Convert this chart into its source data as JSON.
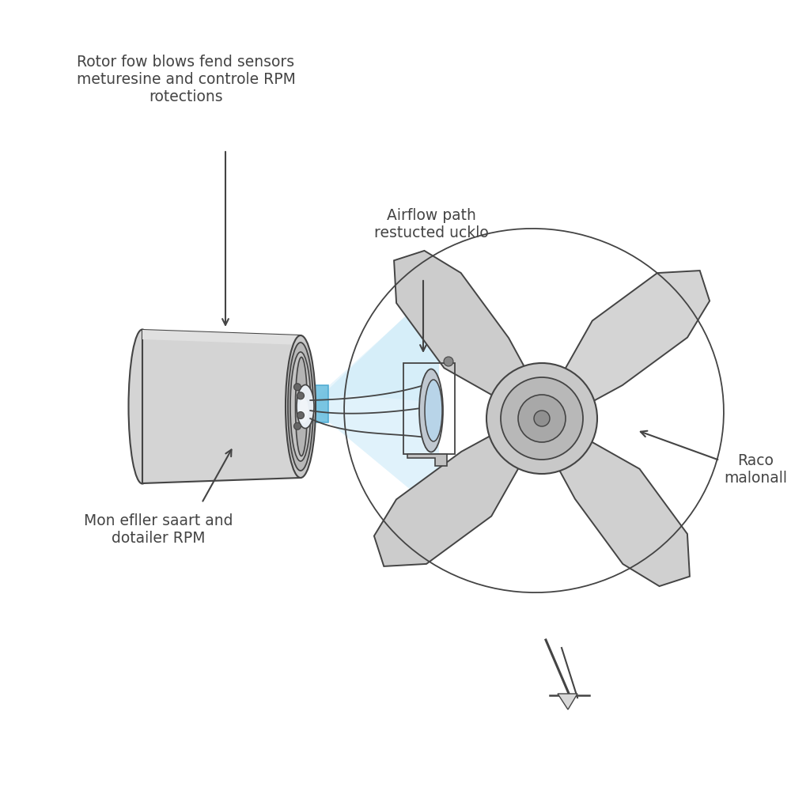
{
  "bg_color": "#ffffff",
  "labels": {
    "top_left": "Rotor fow blows fend sensors\nmeturesine and controle RPM\nrotections",
    "mid_right": "Airflow path\nrestucted ucklo",
    "bottom_left": "Mon efller saart and\ndotailer RPM",
    "right": "Raco\nmalonall"
  },
  "motor_color": "#d4d4d4",
  "motor_dark": "#b0b0b0",
  "blade_color": "#d8d8d8",
  "blade_edge": "#555555",
  "airflow_blue": "#7ec8e8",
  "airflow_light": "#c8e8f8",
  "line_color": "#444444",
  "font_size": 13.5
}
